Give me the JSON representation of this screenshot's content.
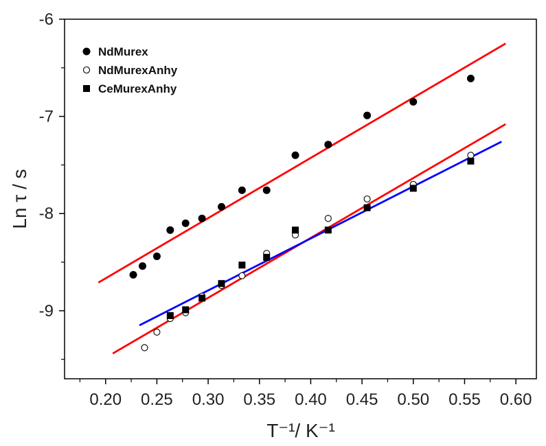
{
  "chart_data": {
    "type": "scatter",
    "xlabel": "T⁻¹/ K⁻¹",
    "ylabel": "Ln τ / s",
    "xlim": [
      0.16,
      0.62
    ],
    "ylim": [
      -9.7,
      -6.0
    ],
    "xticks": [
      0.2,
      0.25,
      0.3,
      0.35,
      0.4,
      0.45,
      0.5,
      0.55,
      0.6
    ],
    "xtick_labels": [
      "0.20",
      "0.25",
      "0.30",
      "0.35",
      "0.40",
      "0.45",
      "0.50",
      "0.55",
      "0.60"
    ],
    "yticks": [
      -9,
      -8,
      -7,
      -6
    ],
    "ytick_labels": [
      "-9",
      "-8",
      "-7",
      "-6"
    ],
    "legend_position": "top-left",
    "grid": false,
    "series": [
      {
        "name": "NdMurex",
        "marker": "filled-circle",
        "color": "#000000",
        "points": [
          [
            0.227,
            -8.63
          ],
          [
            0.236,
            -8.54
          ],
          [
            0.25,
            -8.44
          ],
          [
            0.263,
            -8.17
          ],
          [
            0.278,
            -8.1
          ],
          [
            0.294,
            -8.05
          ],
          [
            0.313,
            -7.93
          ],
          [
            0.333,
            -7.76
          ],
          [
            0.357,
            -7.76
          ],
          [
            0.385,
            -7.4
          ],
          [
            0.417,
            -7.29
          ],
          [
            0.455,
            -6.99
          ],
          [
            0.5,
            -6.85
          ],
          [
            0.556,
            -6.61
          ]
        ]
      },
      {
        "name": "NdMurexAnhy",
        "marker": "open-circle",
        "color": "#000000",
        "points": [
          [
            0.238,
            -9.38
          ],
          [
            0.25,
            -9.22
          ],
          [
            0.263,
            -9.08
          ],
          [
            0.278,
            -9.02
          ],
          [
            0.294,
            -8.85
          ],
          [
            0.313,
            -8.74
          ],
          [
            0.333,
            -8.64
          ],
          [
            0.357,
            -8.41
          ],
          [
            0.385,
            -8.22
          ],
          [
            0.417,
            -8.05
          ],
          [
            0.455,
            -7.85
          ],
          [
            0.5,
            -7.7
          ],
          [
            0.556,
            -7.4
          ]
        ]
      },
      {
        "name": "CeMurexAnhy",
        "marker": "filled-square",
        "color": "#000000",
        "points": [
          [
            0.263,
            -9.05
          ],
          [
            0.278,
            -8.99
          ],
          [
            0.294,
            -8.87
          ],
          [
            0.313,
            -8.72
          ],
          [
            0.333,
            -8.53
          ],
          [
            0.357,
            -8.45
          ],
          [
            0.385,
            -8.17
          ],
          [
            0.417,
            -8.17
          ],
          [
            0.455,
            -7.94
          ],
          [
            0.5,
            -7.74
          ],
          [
            0.556,
            -7.46
          ]
        ]
      }
    ],
    "fit_lines": [
      {
        "color": "#ff0000",
        "x": [
          0.193,
          0.59
        ],
        "y": [
          -8.71,
          -6.25
        ]
      },
      {
        "color": "#ff0000",
        "x": [
          0.207,
          0.59
        ],
        "y": [
          -9.44,
          -7.08
        ]
      },
      {
        "color": "#0000ff",
        "x": [
          0.233,
          0.586
        ],
        "y": [
          -9.15,
          -7.26
        ]
      }
    ]
  }
}
